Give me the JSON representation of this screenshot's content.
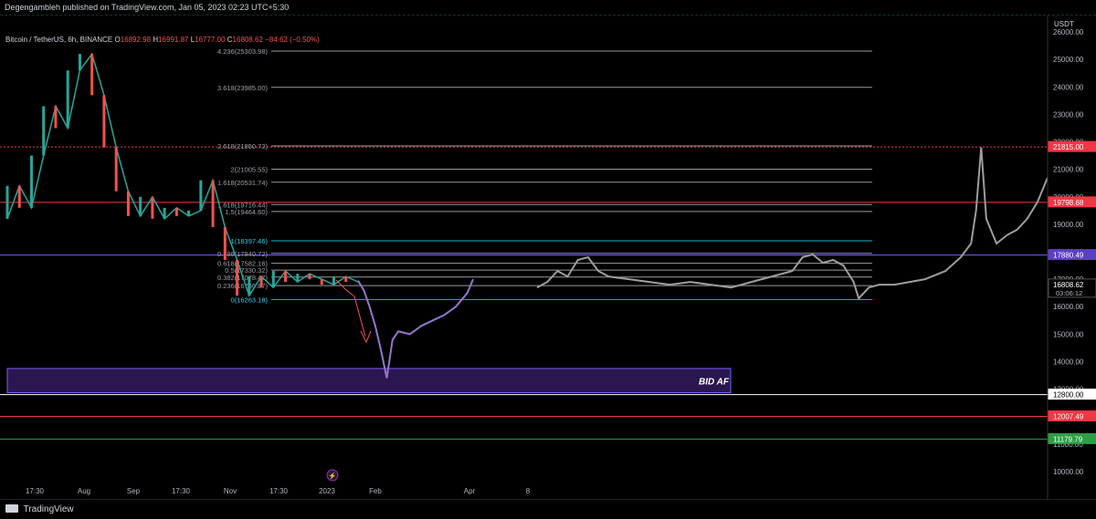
{
  "header": {
    "published_text": "Degengambleh published on TradingView.com, Jan 05, 2023 02:23 UTC+5:30"
  },
  "legend": {
    "symbol": "Bitcoin / TetherUS, 6h, BINANCE",
    "o_label": "O",
    "o_value": "16892.98",
    "h_label": "H",
    "h_value": "16991.87",
    "l_label": "L",
    "l_value": "16777.00",
    "c_label": "C",
    "c_value": "16808.62",
    "change": "−84.62 (−0.50%)"
  },
  "footer": {
    "brand": "TradingView"
  },
  "zone_label": "BID AF",
  "currency_label": "USDT",
  "chart_data": {
    "type": "line",
    "y_axis": {
      "unit": "USDT",
      "ticks": [
        26000,
        25000,
        24000,
        23000,
        22000,
        21000,
        20000,
        19000,
        18000,
        17000,
        16000,
        15000,
        14000,
        13000,
        12000,
        11000,
        10000
      ],
      "tick_labels": [
        "26000.00",
        "25000.00",
        "24000.00",
        "23000.00",
        "22000.00",
        "21000.00",
        "20000.00",
        "19000.00",
        "18000.00",
        "17000.00",
        "16000.00",
        "15000.00",
        "14000.00",
        "13000.00",
        "12000.00",
        "11000.00",
        "10000.00"
      ],
      "range": [
        9500,
        26600
      ]
    },
    "x_axis": {
      "tick_labels": [
        "17:30",
        "Aug",
        "Sep",
        "17:30",
        "Nov",
        "17:30",
        "2023",
        "Feb",
        "Apr",
        "8"
      ]
    },
    "price_badges": [
      {
        "value": "21815.00",
        "color": "#f23645"
      },
      {
        "value": "19798.68",
        "color": "#f23645"
      },
      {
        "value": "17880.49",
        "color": "#5b3fc4"
      },
      {
        "value": "16808.62",
        "color": "#000000",
        "sub": "03:06:12"
      },
      {
        "value": "12800.00",
        "color": "#ffffff"
      },
      {
        "value": "12007.49",
        "color": "#f23645"
      },
      {
        "value": "11179.79",
        "color": "#2e9e44"
      }
    ],
    "horizontal_lines": [
      {
        "price": 21815,
        "color": "#f23645",
        "dashed": true
      },
      {
        "price": 19798.68,
        "color": "#f23645"
      },
      {
        "price": 17880.49,
        "color": "#7b5cff"
      },
      {
        "price": 12800,
        "color": "#ffffff"
      },
      {
        "price": 12007.49,
        "color": "#f23645"
      },
      {
        "price": 11179.79,
        "color": "#2e9e44"
      }
    ],
    "fib_levels": [
      {
        "label": "4.236(25303.98)",
        "price": 25303.98,
        "color": "#b2b5be"
      },
      {
        "label": "3.618(23985.00)",
        "price": 23985.0,
        "color": "#b2b5be"
      },
      {
        "label": "2.618(21850.72)",
        "price": 21850.72,
        "color": "#b2b5be"
      },
      {
        "label": "2(21005.55)",
        "price": 21005.55,
        "color": "#b2b5be"
      },
      {
        "label": "1.618(20531.74)",
        "price": 20531.74,
        "color": "#b2b5be"
      },
      {
        "label": "1.618(19716.44)",
        "price": 19716.44,
        "color": "#b2b5be"
      },
      {
        "label": "1.5(19464.60)",
        "price": 19464.6,
        "color": "#b2b5be"
      },
      {
        "label": "1(18397.46)",
        "price": 18397.46,
        "color": "#22d3ee"
      },
      {
        "label": "0.786(17940.72)",
        "price": 17940.72,
        "color": "#b2b5be"
      },
      {
        "label": "0.618(17582.16)",
        "price": 17582.16,
        "color": "#b2b5be"
      },
      {
        "label": "0.5(17330.32)",
        "price": 17330.32,
        "color": "#b2b5be"
      },
      {
        "label": "0.382(17078.47)",
        "price": 17078.47,
        "color": "#b2b5be"
      },
      {
        "label": "0.236(16766.87)",
        "price": 16766.87,
        "color": "#b2b5be"
      },
      {
        "label": "0(16263.18)",
        "price": 16263.18,
        "color": "#22d3ee"
      }
    ],
    "bid_zone": {
      "top": 13750,
      "bottom": 12870,
      "color": "#7b5cff",
      "label": "BID AF"
    },
    "candles_path": [
      [
        0,
        19200
      ],
      [
        0.02,
        20400
      ],
      [
        0.04,
        19600
      ],
      [
        0.06,
        21500
      ],
      [
        0.08,
        23300
      ],
      [
        0.1,
        22500
      ],
      [
        0.12,
        24600
      ],
      [
        0.14,
        25200
      ],
      [
        0.16,
        23700
      ],
      [
        0.18,
        21800
      ],
      [
        0.2,
        20200
      ],
      [
        0.22,
        19300
      ],
      [
        0.24,
        20000
      ],
      [
        0.26,
        19200
      ],
      [
        0.28,
        19600
      ],
      [
        0.3,
        19300
      ],
      [
        0.32,
        19500
      ],
      [
        0.34,
        20600
      ],
      [
        0.36,
        18900
      ],
      [
        0.38,
        17700
      ],
      [
        0.4,
        16400
      ],
      [
        0.42,
        17100
      ],
      [
        0.44,
        16700
      ],
      [
        0.46,
        17300
      ],
      [
        0.48,
        16900
      ],
      [
        0.5,
        17200
      ],
      [
        0.52,
        17000
      ],
      [
        0.54,
        16800
      ],
      [
        0.56,
        17100
      ],
      [
        0.58,
        16900
      ]
    ],
    "projection_purple": [
      [
        0,
        16950
      ],
      [
        0.05,
        16600
      ],
      [
        0.1,
        16000
      ],
      [
        0.15,
        15300
      ],
      [
        0.2,
        14400
      ],
      [
        0.25,
        13400
      ],
      [
        0.3,
        14800
      ],
      [
        0.35,
        15100
      ],
      [
        0.45,
        15000
      ],
      [
        0.55,
        15300
      ],
      [
        0.65,
        15500
      ],
      [
        0.75,
        15700
      ],
      [
        0.85,
        16000
      ],
      [
        0.95,
        16500
      ],
      [
        1,
        17000
      ]
    ],
    "projection_grey": [
      [
        0,
        16700
      ],
      [
        0.02,
        16900
      ],
      [
        0.04,
        17300
      ],
      [
        0.06,
        17100
      ],
      [
        0.08,
        17700
      ],
      [
        0.1,
        17800
      ],
      [
        0.12,
        17300
      ],
      [
        0.14,
        17100
      ],
      [
        0.18,
        17000
      ],
      [
        0.22,
        16900
      ],
      [
        0.26,
        16800
      ],
      [
        0.3,
        16900
      ],
      [
        0.34,
        16800
      ],
      [
        0.38,
        16700
      ],
      [
        0.42,
        16900
      ],
      [
        0.46,
        17100
      ],
      [
        0.5,
        17300
      ],
      [
        0.52,
        17800
      ],
      [
        0.54,
        17900
      ],
      [
        0.56,
        17600
      ],
      [
        0.58,
        17700
      ],
      [
        0.6,
        17500
      ],
      [
        0.62,
        16900
      ],
      [
        0.63,
        16300
      ],
      [
        0.65,
        16700
      ],
      [
        0.67,
        16800
      ],
      [
        0.7,
        16800
      ],
      [
        0.73,
        16900
      ],
      [
        0.76,
        17000
      ],
      [
        0.8,
        17300
      ],
      [
        0.83,
        17800
      ],
      [
        0.85,
        18300
      ],
      [
        0.86,
        19500
      ],
      [
        0.87,
        21800
      ],
      [
        0.88,
        19200
      ],
      [
        0.9,
        18300
      ],
      [
        0.92,
        18600
      ],
      [
        0.94,
        18800
      ],
      [
        0.96,
        19200
      ],
      [
        0.98,
        19800
      ],
      [
        1,
        20700
      ]
    ]
  }
}
